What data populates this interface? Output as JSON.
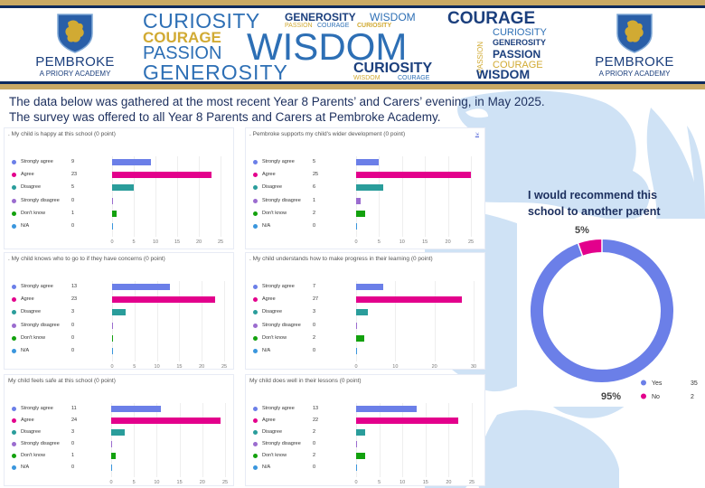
{
  "header": {
    "school_name": "PEMBROKE",
    "school_subtitle": "A PRIORY ACADEMY",
    "crest_icon": "lion-shield-crest",
    "word_cloud": [
      {
        "text": "CURIOSITY",
        "style": "thin"
      },
      {
        "text": "GENEROSITY",
        "style": "bold"
      },
      {
        "text": "WISDOM",
        "style": "thin"
      },
      {
        "text": "COURAGE",
        "style": "bold"
      },
      {
        "text": "PASSION",
        "style": "thin-gold"
      },
      {
        "text": "COURAGE",
        "style": "thin"
      },
      {
        "text": "CURIOSITY",
        "style": "bold-gold"
      },
      {
        "text": "COURAGE",
        "style": "bold-gold"
      },
      {
        "text": "WISDOM",
        "style": "thin"
      },
      {
        "text": "PASSION",
        "style": "thin"
      },
      {
        "text": "PASSION",
        "style": "thin-gold"
      },
      {
        "text": "CURIOSITY",
        "style": "thin"
      },
      {
        "text": "GENEROSITY",
        "style": "bold"
      },
      {
        "text": "PASSION",
        "style": "bold"
      },
      {
        "text": "COURAGE",
        "style": "thin-gold"
      },
      {
        "text": "GENEROSITY",
        "style": "thin"
      },
      {
        "text": "CURIOSITY",
        "style": "bold"
      },
      {
        "text": "WISDOM",
        "style": "thin-gold"
      },
      {
        "text": "COURAGE",
        "style": "thin"
      },
      {
        "text": "WISDOM",
        "style": "bold"
      }
    ]
  },
  "intro": {
    "line1": "The data below was gathered at the most recent Year 8 Parents’ and Carers’ evening, in May 2025.",
    "line2": "The survey was offered to all Year 8 Parents and Carers at Pembroke Academy."
  },
  "colors": {
    "strongly_agree": "#6b7fe8",
    "agree": "#e3008c",
    "disagree": "#2a9d9b",
    "strongly_disagree": "#9b6ccf",
    "dont_know": "#13a10e",
    "na": "#3a96dd",
    "navy": "#1c2f5e",
    "gold": "#c9a964",
    "background_lion": "#cfe2f5"
  },
  "chart_data": [
    {
      "type": "bar",
      "orientation": "horizontal",
      "title": ". My child is happy at this school (0 point)",
      "categories": [
        "Strongly agree",
        "Agree",
        "Disagree",
        "Strongly disagree",
        "Don't know",
        "N/A"
      ],
      "values": [
        9,
        23,
        5,
        0,
        1,
        0
      ],
      "xticks": [
        "0",
        "5",
        "10",
        "15",
        "20",
        "25"
      ],
      "xlim": [
        0,
        25
      ],
      "grid": true,
      "legend": "left"
    },
    {
      "type": "bar",
      "orientation": "horizontal",
      "title": ". Pembroke supports my child's wider development (0 point)",
      "categories": [
        "Strongly agree",
        "Agree",
        "Disagree",
        "Strongly disagree",
        "Don't know",
        "N/A"
      ],
      "values": [
        5,
        25,
        6,
        1,
        2,
        0
      ],
      "xticks": [
        "0",
        "5",
        "10",
        "15",
        "20",
        "25"
      ],
      "xlim": [
        0,
        25
      ],
      "grid": true,
      "legend": "left",
      "expand_label": "⇲"
    },
    {
      "type": "bar",
      "orientation": "horizontal",
      "title": ". My child knows who to go to if they have concerns (0 point)",
      "categories": [
        "Strongly agree",
        "Agree",
        "Disagree",
        "Strongly disagree",
        "Don't know",
        "N/A"
      ],
      "values": [
        13,
        23,
        3,
        0,
        0,
        0
      ],
      "xticks": [
        "0",
        "5",
        "10",
        "15",
        "20",
        "25"
      ],
      "xlim": [
        0,
        25
      ],
      "grid": true,
      "legend": "left"
    },
    {
      "type": "bar",
      "orientation": "horizontal",
      "title": ". My child understands how to make progress in their learning (0 point)",
      "categories": [
        "Strongly agree",
        "Agree",
        "Disagree",
        "Strongly disagree",
        "Don't know",
        "N/A"
      ],
      "values": [
        7,
        27,
        3,
        0,
        2,
        0
      ],
      "xticks": [
        "0",
        "10",
        "20",
        "30"
      ],
      "xlim": [
        0,
        30
      ],
      "grid": true,
      "legend": "left"
    },
    {
      "type": "bar",
      "orientation": "horizontal",
      "title": "My child feels safe at this school (0 point)",
      "categories": [
        "Strongly agree",
        "Agree",
        "Disagree",
        "Strongly disagree",
        "Don't know",
        "N/A"
      ],
      "values": [
        11,
        24,
        3,
        0,
        1,
        0
      ],
      "xticks": [
        "0",
        "5",
        "10",
        "15",
        "20",
        "25"
      ],
      "xlim": [
        0,
        25
      ],
      "grid": true,
      "legend": "left"
    },
    {
      "type": "bar",
      "orientation": "horizontal",
      "title": "My child does well in their lessons (0 point)",
      "categories": [
        "Strongly agree",
        "Agree",
        "Disagree",
        "Strongly disagree",
        "Don't know",
        "N/A"
      ],
      "values": [
        13,
        22,
        2,
        0,
        2,
        0
      ],
      "xticks": [
        "0",
        "5",
        "10",
        "15",
        "20",
        "25"
      ],
      "xlim": [
        0,
        25
      ],
      "grid": true,
      "legend": "left"
    },
    {
      "type": "pie",
      "variant": "donut",
      "title": "I would recommend this school to another parent",
      "categories": [
        "Yes",
        "No"
      ],
      "values": [
        35,
        2
      ],
      "percent_labels": [
        "95%",
        "5%"
      ],
      "colors": [
        "#6b7fe8",
        "#e3008c"
      ],
      "legend": "bottom-right"
    }
  ]
}
